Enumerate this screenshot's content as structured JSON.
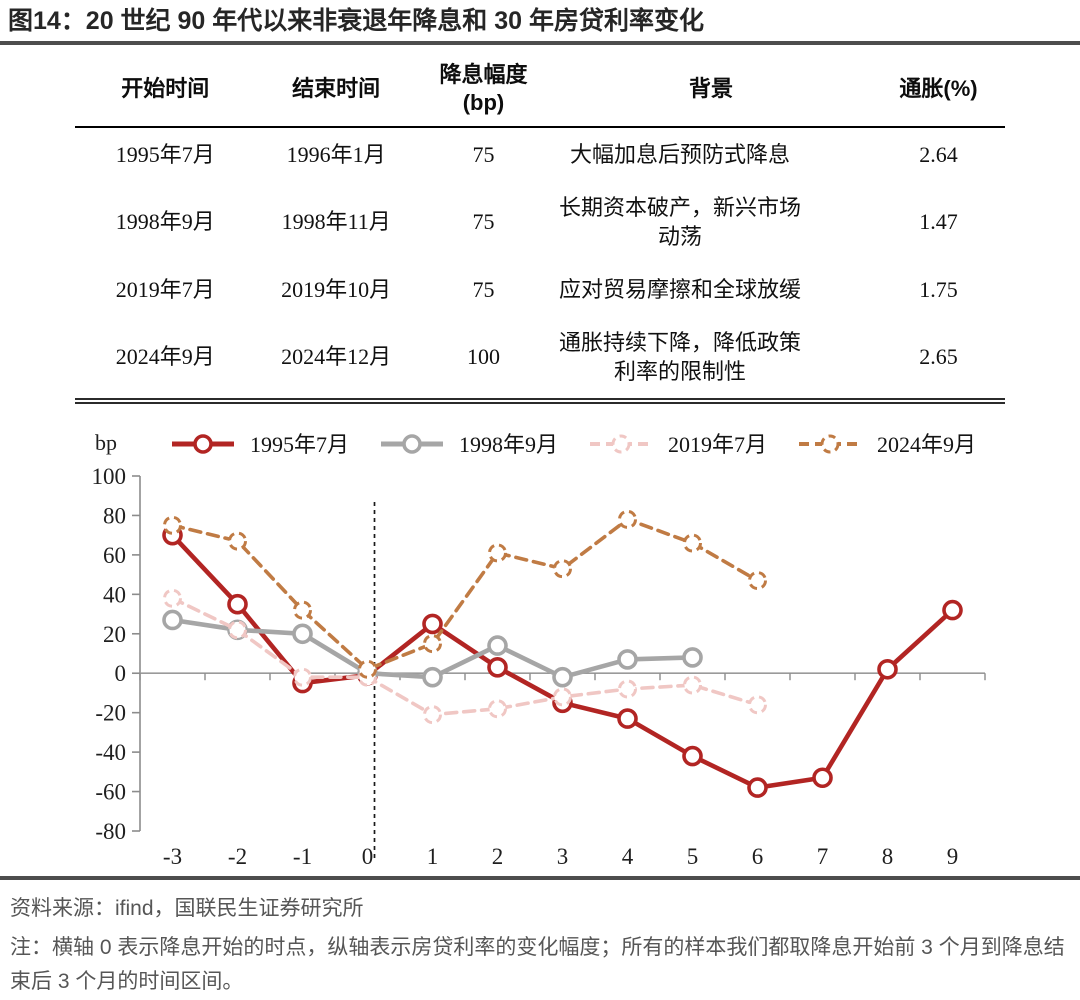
{
  "title": "图14：20 世纪 90 年代以来非衰退年降息和 30 年房贷利率变化",
  "table": {
    "headers": {
      "start": "开始时间",
      "end": "结束时间",
      "cut_line1": "降息幅度",
      "cut_line2": "(bp)",
      "background": "背景",
      "inflation": "通胀(%)"
    },
    "rows": [
      {
        "start": "1995年7月",
        "end": "1996年1月",
        "cut": "75",
        "background": "大幅加息后预防式降息",
        "inflation": "2.64"
      },
      {
        "start": "1998年9月",
        "end": "1998年11月",
        "cut": "75",
        "background": "长期资本破产，新兴市场动荡",
        "inflation": "1.47"
      },
      {
        "start": "2019年7月",
        "end": "2019年10月",
        "cut": "75",
        "background": "应对贸易摩擦和全球放缓",
        "inflation": "1.75"
      },
      {
        "start": "2024年9月",
        "end": "2024年12月",
        "cut": "100",
        "background": "通胀持续下降，降低政策利率的限制性",
        "inflation": "2.65"
      }
    ]
  },
  "chart_data": {
    "type": "line",
    "y_axis_label": "bp",
    "x": [
      -3,
      -2,
      -1,
      0,
      1,
      2,
      3,
      4,
      5,
      6,
      7,
      8,
      9
    ],
    "ylim": [
      -80,
      100
    ],
    "y_ticks": [
      100,
      80,
      60,
      40,
      20,
      0,
      -20,
      -40,
      -60,
      -80
    ],
    "grid": false,
    "legend_position": "top",
    "vline_at_x": 0.1,
    "series": [
      {
        "name": "1995年7月",
        "color": "#B22523",
        "style": "solid",
        "values": [
          70,
          35,
          -5,
          -1,
          25,
          3,
          -15,
          -23,
          -42,
          -58,
          -53,
          2,
          32
        ]
      },
      {
        "name": "1998年9月",
        "color": "#A6A6A6",
        "style": "solid",
        "values": [
          27,
          22,
          20,
          0,
          -2,
          14,
          -2,
          7,
          8,
          null,
          null,
          null,
          null
        ]
      },
      {
        "name": "2019年7月",
        "color": "#F0C7C4",
        "style": "dashed",
        "values": [
          38,
          22,
          -2,
          -2,
          -21,
          -18,
          -12,
          -8,
          -6,
          -16,
          null,
          null,
          null
        ]
      },
      {
        "name": "2024年9月",
        "color": "#C07B44",
        "style": "dashed",
        "values": [
          75,
          67,
          32,
          2,
          15,
          61,
          53,
          78,
          66,
          47,
          null,
          null,
          null
        ]
      }
    ],
    "axis_color": "#8c8c8c",
    "zero_line_color": "#9a9a9a",
    "vline_color": "#1a1a1a"
  },
  "footer": {
    "source": "资料来源：ifind，国联民生证券研究所",
    "note": "注：横轴 0 表示降息开始的时点，纵轴表示房贷利率的变化幅度；所有的样本我们都取降息开始前 3 个月到降息结束后 3 个月的时间区间。"
  }
}
